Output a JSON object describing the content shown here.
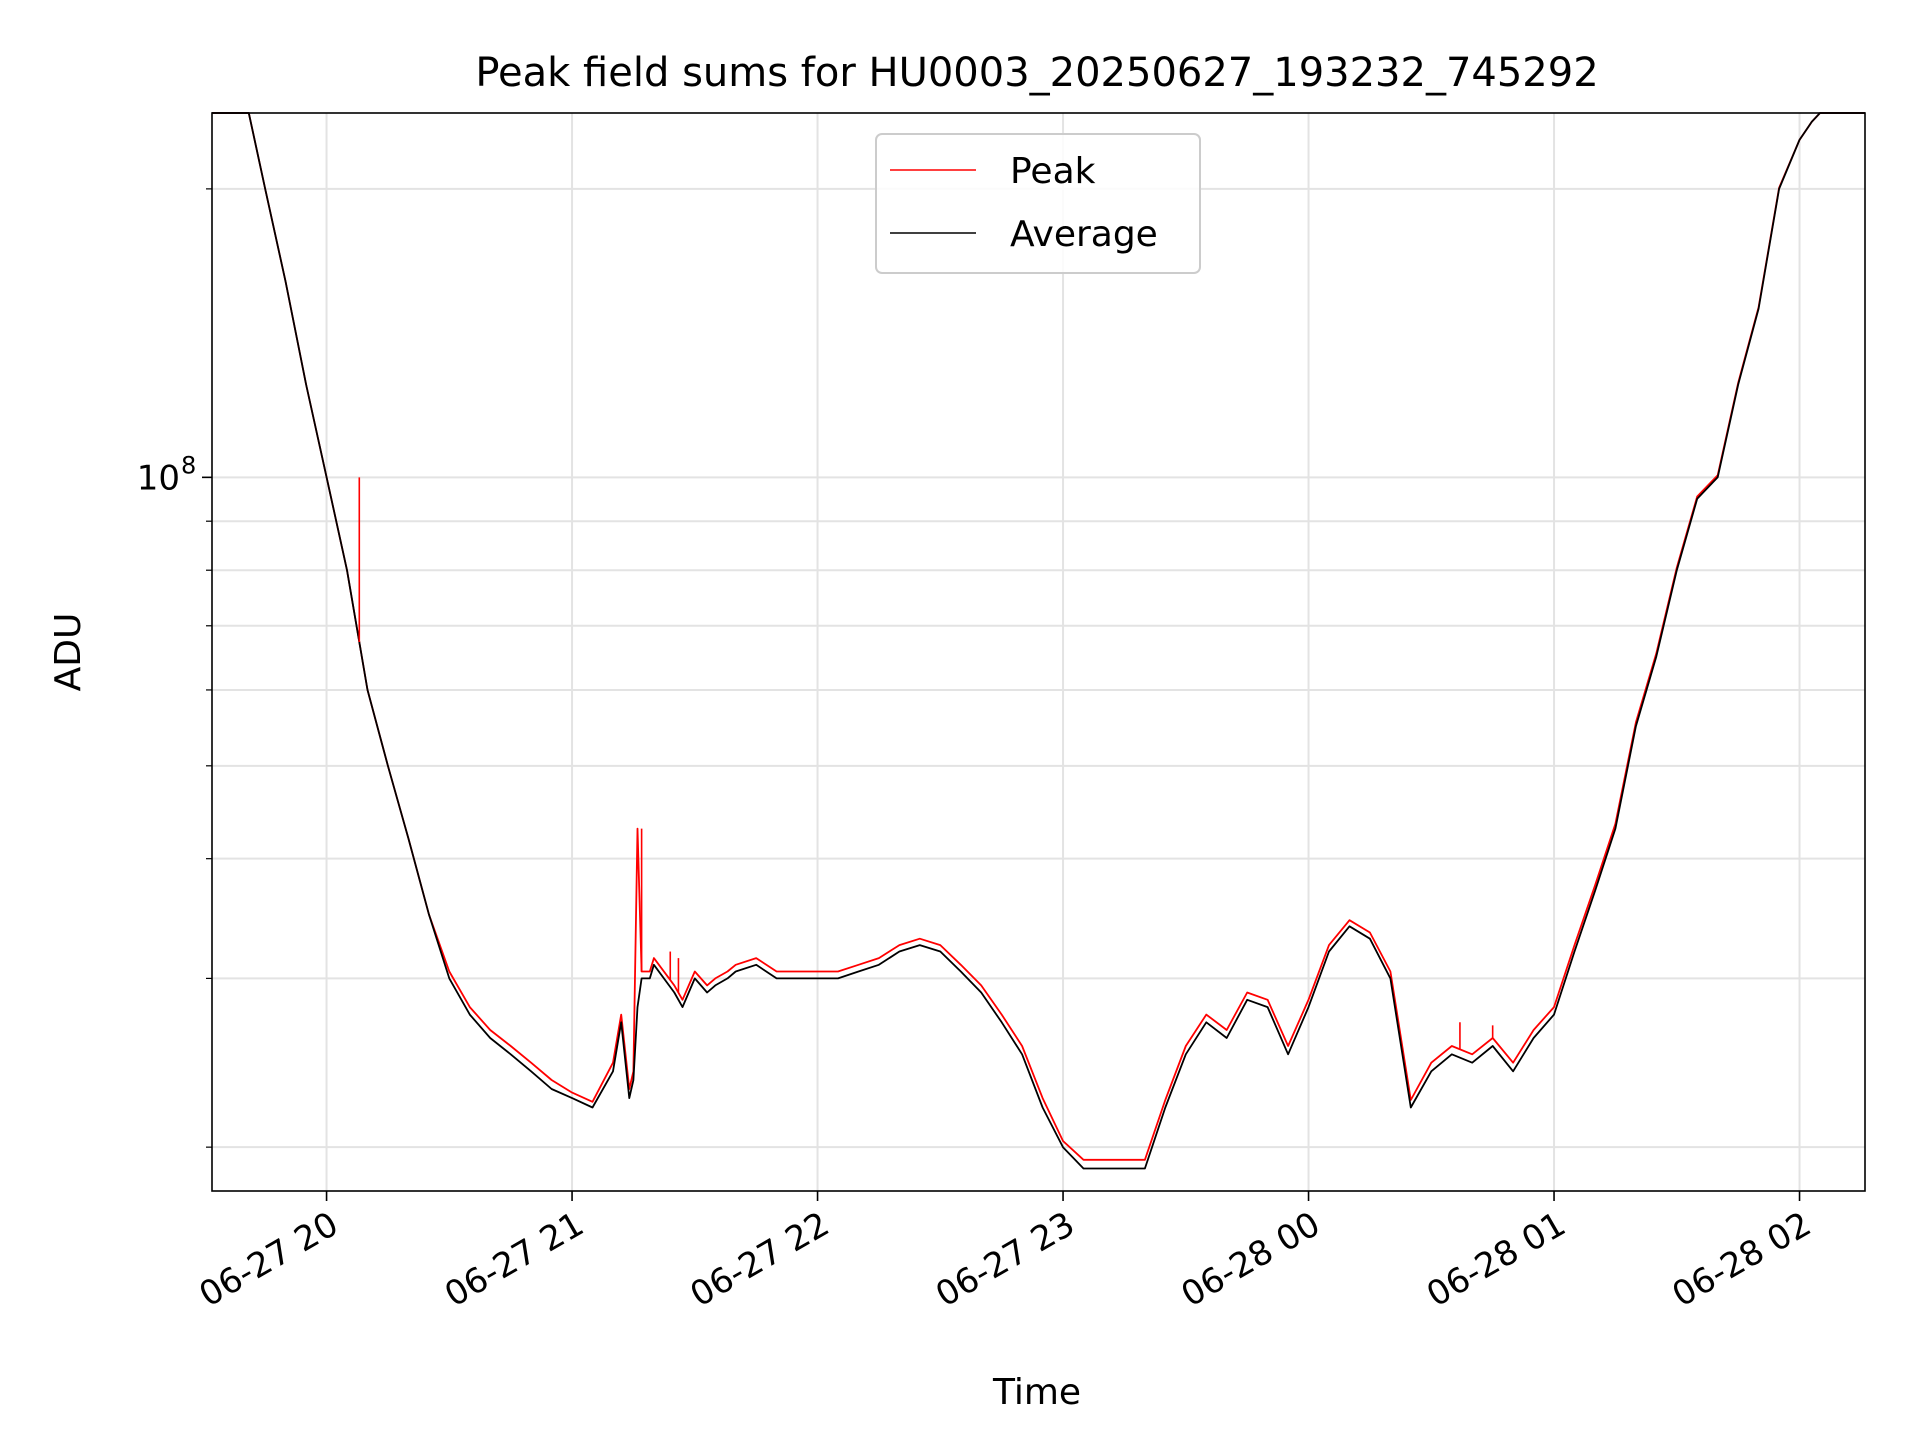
{
  "chart_data": {
    "type": "line",
    "title": "Peak field sums for HU0003_20250627_193232_745292",
    "xlabel": "Time",
    "ylabel": "ADU",
    "y_scale": "log",
    "ylim": [
      18000000,
      240000000
    ],
    "x_ticks": [
      {
        "value": "2025-06-27 20:00",
        "label": "06-27 20"
      },
      {
        "value": "2025-06-27 21:00",
        "label": "06-27 21"
      },
      {
        "value": "2025-06-27 22:00",
        "label": "06-27 22"
      },
      {
        "value": "2025-06-27 23:00",
        "label": "06-27 23"
      },
      {
        "value": "2025-06-28 00:00",
        "label": "06-28 00"
      },
      {
        "value": "2025-06-28 01:00",
        "label": "06-28 01"
      },
      {
        "value": "2025-06-28 02:00",
        "label": "06-28 02"
      }
    ],
    "xlim": [
      "2025-06-27 19:32",
      "2025-06-28 02:16"
    ],
    "y_major_tick": {
      "value": 100000000,
      "label_base": "10",
      "label_exp": "8"
    },
    "y_minor_ticks": [
      20000000,
      30000000,
      40000000,
      50000000,
      60000000,
      70000000,
      80000000,
      90000000,
      200000000
    ],
    "grid": true,
    "legend_position": "top-center",
    "colors": {
      "Peak": "#ff0000",
      "Average": "#000000"
    },
    "series": [
      {
        "name": "Average",
        "x": [
          "2025-06-27 19:32",
          "2025-06-27 19:41",
          "2025-06-27 19:45",
          "2025-06-27 19:50",
          "2025-06-27 19:55",
          "2025-06-27 20:00",
          "2025-06-27 20:05",
          "2025-06-27 20:10",
          "2025-06-27 20:15",
          "2025-06-27 20:20",
          "2025-06-27 20:25",
          "2025-06-27 20:30",
          "2025-06-27 20:35",
          "2025-06-27 20:40",
          "2025-06-27 20:45",
          "2025-06-27 20:50",
          "2025-06-27 20:55",
          "2025-06-27 21:00",
          "2025-06-27 21:05",
          "2025-06-27 21:10",
          "2025-06-27 21:12",
          "2025-06-27 21:14",
          "2025-06-27 21:15",
          "2025-06-27 21:16",
          "2025-06-27 21:17",
          "2025-06-27 21:19",
          "2025-06-27 21:20",
          "2025-06-27 21:25",
          "2025-06-27 21:27",
          "2025-06-27 21:30",
          "2025-06-27 21:33",
          "2025-06-27 21:35",
          "2025-06-27 21:38",
          "2025-06-27 21:40",
          "2025-06-27 21:45",
          "2025-06-27 21:50",
          "2025-06-27 21:55",
          "2025-06-27 22:00",
          "2025-06-27 22:05",
          "2025-06-27 22:10",
          "2025-06-27 22:15",
          "2025-06-27 22:20",
          "2025-06-27 22:25",
          "2025-06-27 22:30",
          "2025-06-27 22:35",
          "2025-06-27 22:40",
          "2025-06-27 22:45",
          "2025-06-27 22:50",
          "2025-06-27 22:55",
          "2025-06-27 23:00",
          "2025-06-27 23:05",
          "2025-06-27 23:10",
          "2025-06-27 23:15",
          "2025-06-27 23:20",
          "2025-06-27 23:25",
          "2025-06-27 23:30",
          "2025-06-27 23:35",
          "2025-06-27 23:40",
          "2025-06-27 23:45",
          "2025-06-27 23:50",
          "2025-06-27 23:55",
          "2025-06-28 00:00",
          "2025-06-28 00:05",
          "2025-06-28 00:10",
          "2025-06-28 00:15",
          "2025-06-28 00:20",
          "2025-06-28 00:25",
          "2025-06-28 00:30",
          "2025-06-28 00:35",
          "2025-06-28 00:40",
          "2025-06-28 00:45",
          "2025-06-28 00:50",
          "2025-06-28 00:55",
          "2025-06-28 01:00",
          "2025-06-28 01:05",
          "2025-06-28 01:10",
          "2025-06-28 01:15",
          "2025-06-28 01:20",
          "2025-06-28 01:25",
          "2025-06-28 01:30",
          "2025-06-28 01:35",
          "2025-06-28 01:40",
          "2025-06-28 01:45",
          "2025-06-28 01:50",
          "2025-06-28 01:55",
          "2025-06-28 02:00",
          "2025-06-28 02:03",
          "2025-06-28 02:05",
          "2025-06-28 02:10",
          "2025-06-28 02:16"
        ],
        "values": [
          240000000,
          240000000,
          200000000,
          160000000,
          125000000,
          100000000,
          80000000,
          60000000,
          50000000,
          42000000,
          35000000,
          30000000,
          27500000,
          26000000,
          25000000,
          24000000,
          23000000,
          22500000,
          22000000,
          24000000,
          27000000,
          22500000,
          23500000,
          28000000,
          30000000,
          30000000,
          31000000,
          29000000,
          28000000,
          30000000,
          29000000,
          29500000,
          30000000,
          30500000,
          31000000,
          30000000,
          30000000,
          30000000,
          30000000,
          30500000,
          31000000,
          32000000,
          32500000,
          32000000,
          30500000,
          29000000,
          27000000,
          25000000,
          22000000,
          20000000,
          19000000,
          19000000,
          19000000,
          19000000,
          22000000,
          25000000,
          27000000,
          26000000,
          28500000,
          28000000,
          25000000,
          28000000,
          32000000,
          34000000,
          33000000,
          30000000,
          22000000,
          24000000,
          25000000,
          24500000,
          25500000,
          24000000,
          26000000,
          27500000,
          32000000,
          37000000,
          43000000,
          55000000,
          65000000,
          80000000,
          95000000,
          100000000,
          125000000,
          150000000,
          200000000,
          225000000,
          235000000,
          240000000,
          240000000,
          240000000
        ]
      },
      {
        "name": "Peak",
        "x": [
          "2025-06-27 19:32",
          "2025-06-27 19:41",
          "2025-06-27 19:45",
          "2025-06-27 19:50",
          "2025-06-27 19:55",
          "2025-06-27 20:00",
          "2025-06-27 20:05",
          "2025-06-27 20:10",
          "2025-06-27 20:15",
          "2025-06-27 20:20",
          "2025-06-27 20:25",
          "2025-06-27 20:30",
          "2025-06-27 20:35",
          "2025-06-27 20:40",
          "2025-06-27 20:45",
          "2025-06-27 20:50",
          "2025-06-27 20:55",
          "2025-06-27 21:00",
          "2025-06-27 21:05",
          "2025-06-27 21:10",
          "2025-06-27 21:12",
          "2025-06-27 21:14",
          "2025-06-27 21:15",
          "2025-06-27 21:16",
          "2025-06-27 21:17",
          "2025-06-27 21:19",
          "2025-06-27 21:20",
          "2025-06-27 21:25",
          "2025-06-27 21:27",
          "2025-06-27 21:30",
          "2025-06-27 21:33",
          "2025-06-27 21:35",
          "2025-06-27 21:38",
          "2025-06-27 21:40",
          "2025-06-27 21:45",
          "2025-06-27 21:50",
          "2025-06-27 21:55",
          "2025-06-27 22:00",
          "2025-06-27 22:05",
          "2025-06-27 22:10",
          "2025-06-27 22:15",
          "2025-06-27 22:20",
          "2025-06-27 22:25",
          "2025-06-27 22:30",
          "2025-06-27 22:35",
          "2025-06-27 22:40",
          "2025-06-27 22:45",
          "2025-06-27 22:50",
          "2025-06-27 22:55",
          "2025-06-27 23:00",
          "2025-06-27 23:05",
          "2025-06-27 23:10",
          "2025-06-27 23:15",
          "2025-06-27 23:20",
          "2025-06-27 23:25",
          "2025-06-27 23:30",
          "2025-06-27 23:35",
          "2025-06-27 23:40",
          "2025-06-27 23:45",
          "2025-06-27 23:50",
          "2025-06-27 23:55",
          "2025-06-28 00:00",
          "2025-06-28 00:05",
          "2025-06-28 00:10",
          "2025-06-28 00:15",
          "2025-06-28 00:20",
          "2025-06-28 00:25",
          "2025-06-28 00:30",
          "2025-06-28 00:35",
          "2025-06-28 00:40",
          "2025-06-28 00:45",
          "2025-06-28 00:50",
          "2025-06-28 00:55",
          "2025-06-28 01:00",
          "2025-06-28 01:05",
          "2025-06-28 01:10",
          "2025-06-28 01:15",
          "2025-06-28 01:20",
          "2025-06-28 01:25",
          "2025-06-28 01:30",
          "2025-06-28 01:35",
          "2025-06-28 01:40",
          "2025-06-28 01:45",
          "2025-06-28 01:50",
          "2025-06-28 01:55",
          "2025-06-28 02:00",
          "2025-06-28 02:03",
          "2025-06-28 02:05",
          "2025-06-28 02:10",
          "2025-06-28 02:16"
        ],
        "values": [
          240000000,
          240000000,
          200000000,
          160000000,
          125000000,
          100000000,
          80000000,
          60000000,
          50000000,
          42000000,
          35000000,
          30500000,
          28000000,
          26500000,
          25500000,
          24500000,
          23500000,
          22800000,
          22300000,
          24500000,
          27500000,
          23000000,
          24000000,
          43000000,
          30500000,
          30500000,
          31500000,
          29500000,
          28500000,
          30500000,
          29500000,
          30000000,
          30500000,
          31000000,
          31500000,
          30500000,
          30500000,
          30500000,
          30500000,
          31000000,
          31500000,
          32500000,
          33000000,
          32500000,
          31000000,
          29500000,
          27500000,
          25500000,
          22500000,
          20300000,
          19400000,
          19400000,
          19400000,
          19400000,
          22400000,
          25500000,
          27500000,
          26500000,
          29000000,
          28500000,
          25500000,
          28500000,
          32500000,
          34500000,
          33500000,
          30500000,
          22400000,
          24500000,
          25500000,
          25000000,
          26000000,
          24500000,
          26500000,
          28000000,
          32500000,
          37500000,
          43500000,
          55500000,
          65500000,
          80500000,
          95500000,
          100500000,
          125500000,
          150500000,
          200500000,
          225000000,
          235000000,
          240000000,
          240000000,
          240000000
        ]
      }
    ],
    "spikes": [
      {
        "series": "Peak",
        "x": "2025-06-27 20:08",
        "value": 100000000
      },
      {
        "series": "Peak",
        "x": "2025-06-27 21:17",
        "value": 43000000
      },
      {
        "series": "Peak",
        "x": "2025-06-27 21:24",
        "value": 32000000
      },
      {
        "series": "Peak",
        "x": "2025-06-27 21:26",
        "value": 31500000
      },
      {
        "series": "Peak",
        "x": "2025-06-28 00:37",
        "value": 27000000
      },
      {
        "series": "Peak",
        "x": "2025-06-28 00:45",
        "value": 26800000
      }
    ]
  }
}
